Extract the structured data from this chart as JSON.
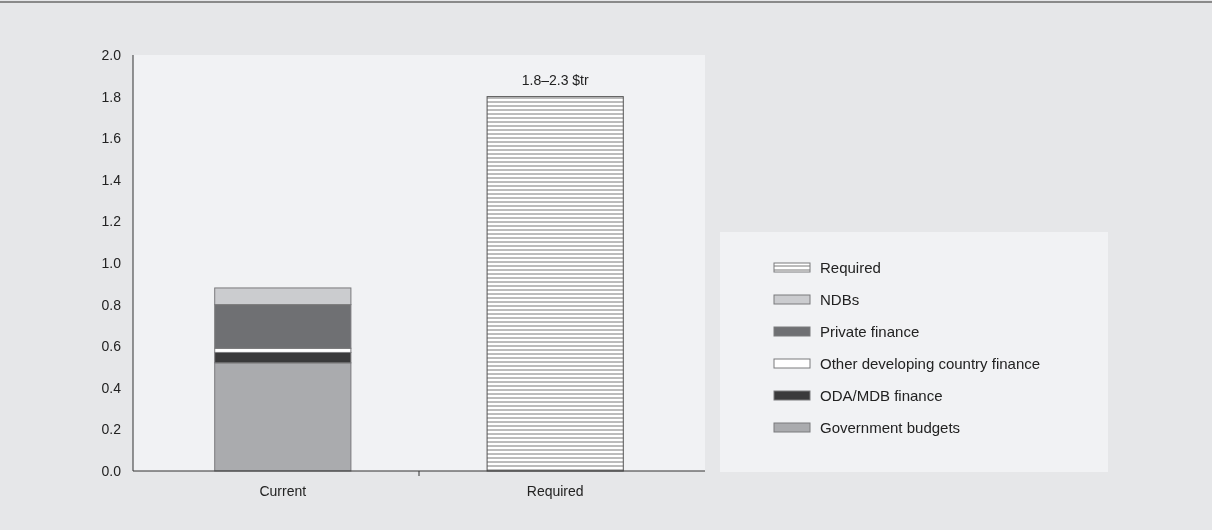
{
  "chart_data": {
    "type": "bar",
    "stacked": true,
    "categories": [
      "Current",
      "Required"
    ],
    "series": [
      {
        "name": "Government budgets",
        "color": "#aaabae",
        "values": [
          0.52,
          null
        ]
      },
      {
        "name": "ODA/MDB finance",
        "color": "#3a3a3b",
        "values": [
          0.05,
          null
        ]
      },
      {
        "name": "Other developing country finance",
        "color": "#ffffff",
        "values": [
          0.02,
          null
        ]
      },
      {
        "name": "Private finance",
        "color": "#6f7073",
        "values": [
          0.21,
          null
        ]
      },
      {
        "name": "NDBs",
        "color": "#cbcccf",
        "values": [
          0.08,
          null
        ]
      },
      {
        "name": "Required",
        "color": "#555555",
        "values": [
          null,
          1.8
        ]
      }
    ],
    "ylim": [
      0,
      2
    ],
    "yticks": [
      {
        "value": 0,
        "label": "0.0"
      },
      {
        "value": 0.2,
        "label": "0.2"
      },
      {
        "value": 0.4,
        "label": "0.4"
      },
      {
        "value": 0.6,
        "label": "0.6"
      },
      {
        "value": 0.8,
        "label": "0.8"
      },
      {
        "value": 1,
        "label": "1.0"
      },
      {
        "value": 1.2,
        "label": "1.2"
      },
      {
        "value": 1.4,
        "label": "1.4"
      },
      {
        "value": 1.6,
        "label": "1.6"
      },
      {
        "value": 1.8,
        "label": "1.8"
      },
      {
        "value": 2,
        "label": "2.0"
      }
    ],
    "annotations": [
      {
        "text": "1.8–2.3 $tr",
        "x": "Required",
        "y": 1.8
      }
    ],
    "legend": "right"
  }
}
